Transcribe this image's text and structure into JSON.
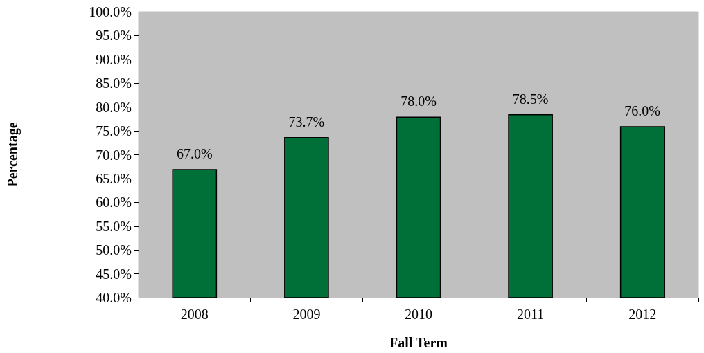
{
  "chart_data": {
    "type": "bar",
    "xlabel": "Fall Term",
    "ylabel": "Percentage",
    "categories": [
      "2008",
      "2009",
      "2010",
      "2011",
      "2012"
    ],
    "values": [
      67.0,
      73.7,
      78.0,
      78.5,
      76.0
    ],
    "value_labels": [
      "67.0%",
      "73.7%",
      "78.0%",
      "78.5%",
      "76.0%"
    ],
    "color": "#007038",
    "ylim": [
      40,
      100
    ],
    "yticks": [
      {
        "value": 40,
        "label": "40.0%"
      },
      {
        "value": 45,
        "label": "45.0%"
      },
      {
        "value": 50,
        "label": "50.0%"
      },
      {
        "value": 55,
        "label": "55.0%"
      },
      {
        "value": 60,
        "label": "60.0%"
      },
      {
        "value": 65,
        "label": "65.0%"
      },
      {
        "value": 70,
        "label": "70.0%"
      },
      {
        "value": 75,
        "label": "75.0%"
      },
      {
        "value": 80,
        "label": "80.0%"
      },
      {
        "value": 85,
        "label": "85.0%"
      },
      {
        "value": 90,
        "label": "90.0%"
      },
      {
        "value": 95,
        "label": "95.0%"
      },
      {
        "value": 100,
        "label": "100.0%"
      }
    ],
    "grid": false
  }
}
